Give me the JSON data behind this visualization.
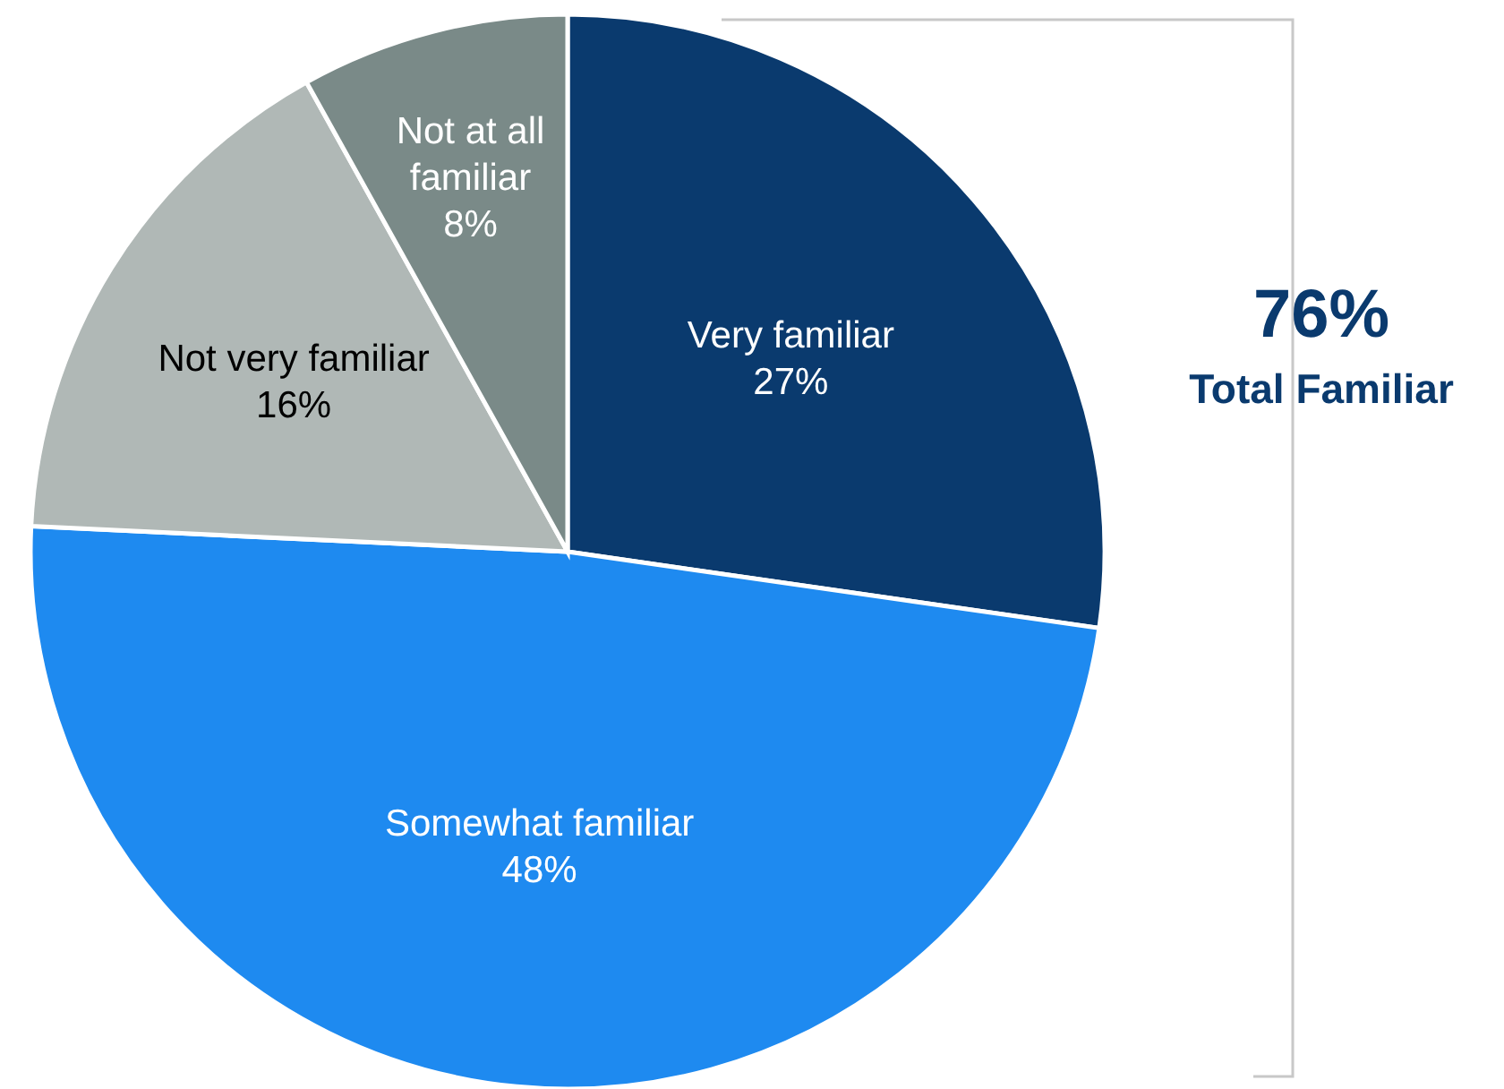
{
  "chart_data": {
    "type": "pie",
    "categories": [
      "Very familiar",
      "Somewhat familiar",
      "Not very familiar",
      "Not at all familiar"
    ],
    "values": [
      27,
      48,
      16,
      8
    ],
    "value_labels": [
      "27%",
      "48%",
      "16%",
      "8%"
    ],
    "colors": [
      "#0a3a6e",
      "#1e8af0",
      "#b0b8b6",
      "#7a8a88"
    ],
    "annotations": [
      "76%",
      "Total Familiar"
    ],
    "legend": false
  }
}
